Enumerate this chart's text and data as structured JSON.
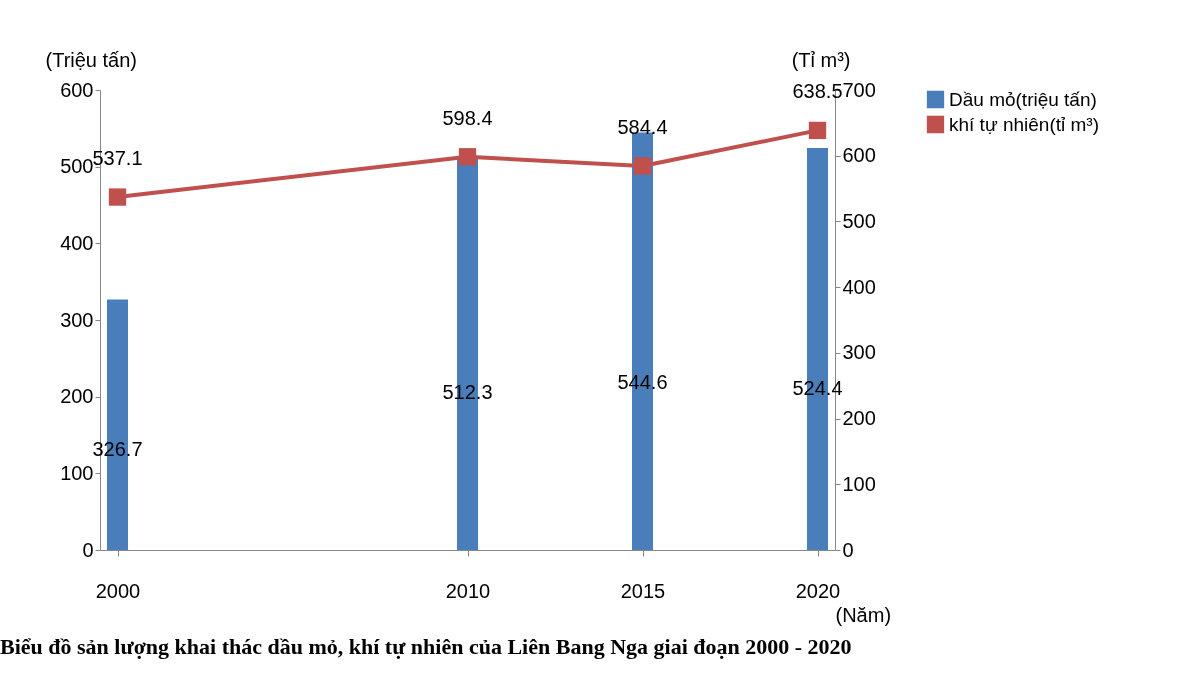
{
  "chart_data": {
    "type": "bar",
    "title": "Biểu đồ sản lượng khai thác dầu mỏ, khí tự nhiên của Liên Bang Nga giai đoạn 2000 - 2020",
    "x": [
      2000,
      2010,
      2015,
      2020
    ],
    "xlabel": "(Năm)",
    "ylabel": "(Triệu tấn)",
    "y2label": "(Tỉ m³)",
    "xlim": [
      1999.5,
      2020.5
    ],
    "xticks": [
      2000,
      2010,
      2015,
      2020
    ],
    "ylim": [
      0,
      600
    ],
    "yticks": [
      0,
      100,
      200,
      300,
      400,
      500,
      600
    ],
    "y2lim": [
      0,
      700
    ],
    "y2ticks": [
      0,
      100,
      200,
      300,
      400,
      500,
      600,
      700
    ],
    "series": [
      {
        "name": "Dầu mỏ(triệu tấn)",
        "color": "#4a7ebb",
        "values": [
          326.7,
          512.3,
          544.6,
          524.4
        ]
      },
      {
        "name": "khí tự nhiên(tỉ m³)",
        "type": "line",
        "axis": "y2",
        "color": "#c0504d",
        "values": [
          537.1,
          598.4,
          584.4,
          638.5
        ]
      }
    ],
    "data_labels": true,
    "legend": "right",
    "marker": "square",
    "grid": false
  }
}
